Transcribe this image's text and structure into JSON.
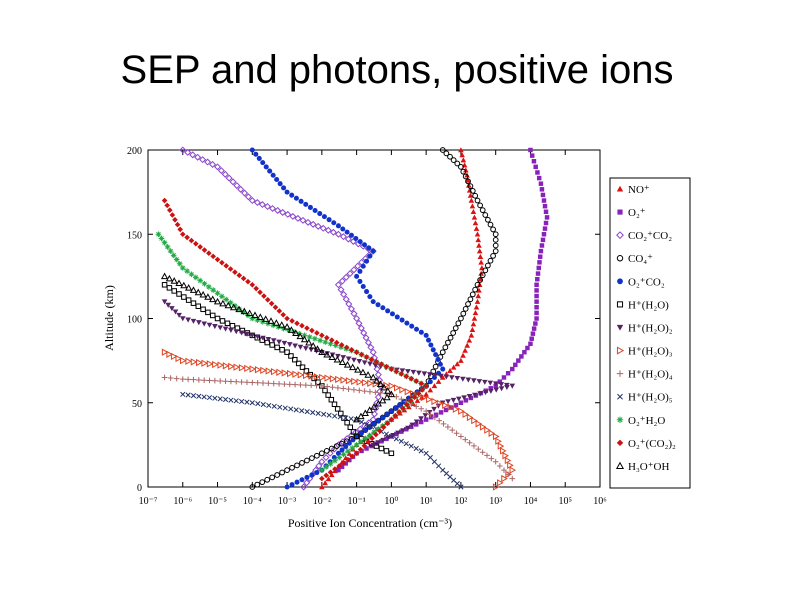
{
  "slide": {
    "title": "SEP and photons, positive ions"
  },
  "chart_data": {
    "type": "scatter",
    "title": "",
    "xlabel": "Positive Ion Concentration (cm⁻³)",
    "ylabel": "Altitude (km)",
    "xscale": "log",
    "xlim": [
      1e-07,
      1000000.0
    ],
    "ylim": [
      0,
      200
    ],
    "xticks": [
      "10⁻⁷",
      "10⁻⁶",
      "10⁻⁵",
      "10⁻⁴",
      "10⁻³",
      "10⁻²",
      "10⁻¹",
      "10⁰",
      "10¹",
      "10²",
      "10³",
      "10⁴",
      "10⁵",
      "10⁶"
    ],
    "yticks": [
      0,
      50,
      100,
      150,
      200
    ],
    "legend_position": "right",
    "series": [
      {
        "name": "NO⁺",
        "color": "#dd1111",
        "marker": "triangle",
        "points": [
          [
            0.01,
            0
          ],
          [
            0.03,
            12
          ],
          [
            0.1,
            25
          ],
          [
            1,
            40
          ],
          [
            10,
            55
          ],
          [
            30,
            65
          ],
          [
            100,
            75
          ],
          [
            200,
            90
          ],
          [
            300,
            110
          ],
          [
            400,
            130
          ],
          [
            300,
            150
          ],
          [
            200,
            170
          ],
          [
            150,
            185
          ],
          [
            100,
            200
          ]
        ]
      },
      {
        "name": "O₂⁺",
        "color": "#8822bb",
        "marker": "square",
        "points": [
          [
            0.03,
            10
          ],
          [
            0.1,
            20
          ],
          [
            1,
            30
          ],
          [
            10,
            40
          ],
          [
            100,
            50
          ],
          [
            1000,
            60
          ],
          [
            3000,
            70
          ],
          [
            10000,
            85
          ],
          [
            15000,
            100
          ],
          [
            15000,
            120
          ],
          [
            20000,
            140
          ],
          [
            30000,
            160
          ],
          [
            20000,
            180
          ],
          [
            10000,
            200
          ]
        ]
      },
      {
        "name": "CO₂⁺CO₂",
        "color": "#8844cc",
        "marker": "diamond-open",
        "points": [
          [
            0.003,
            0
          ],
          [
            0.01,
            15
          ],
          [
            0.03,
            25
          ],
          [
            0.3,
            40
          ],
          [
            0.5,
            60
          ],
          [
            0.3,
            80
          ],
          [
            0.1,
            100
          ],
          [
            0.03,
            120
          ],
          [
            0.3,
            140
          ],
          [
            0.03,
            150
          ],
          [
            0.0001,
            170
          ],
          [
            1e-05,
            190
          ],
          [
            1e-06,
            200
          ]
        ]
      },
      {
        "name": "CO₄⁺",
        "color": "#000000",
        "marker": "circle-open",
        "points": [
          [
            0.0001,
            0
          ],
          [
            0.001,
            10
          ],
          [
            0.01,
            20
          ],
          [
            0.1,
            30
          ],
          [
            1,
            45
          ],
          [
            10,
            60
          ],
          [
            30,
            80
          ],
          [
            100,
            100
          ],
          [
            300,
            120
          ],
          [
            1000,
            140
          ],
          [
            1000,
            150
          ],
          [
            300,
            170
          ],
          [
            100,
            190
          ],
          [
            30,
            200
          ]
        ]
      },
      {
        "name": "O₂⁺CO₂",
        "color": "#1133cc",
        "marker": "circle-filled",
        "points": [
          [
            0.001,
            0
          ],
          [
            0.01,
            10
          ],
          [
            0.03,
            20
          ],
          [
            0.1,
            30
          ],
          [
            1,
            45
          ],
          [
            10,
            60
          ],
          [
            30,
            70
          ],
          [
            10,
            90
          ],
          [
            0.3,
            110
          ],
          [
            0.1,
            125
          ],
          [
            0.3,
            140
          ],
          [
            0.03,
            155
          ],
          [
            0.001,
            175
          ],
          [
            0.0001,
            200
          ]
        ]
      },
      {
        "name": "H⁺(H₂O)",
        "color": "#000000",
        "marker": "square-open",
        "points": [
          [
            1,
            20
          ],
          [
            0.1,
            30
          ],
          [
            0.01,
            60
          ],
          [
            0.001,
            80
          ],
          [
            1e-05,
            100
          ],
          [
            3e-07,
            120
          ]
        ]
      },
      {
        "name": "H⁺(H₂O)₂",
        "color": "#552266",
        "marker": "triangle-down",
        "points": [
          [
            0.3,
            25
          ],
          [
            3,
            35
          ],
          [
            30,
            50
          ],
          [
            3000,
            60
          ],
          [
            1,
            70
          ],
          [
            0.01,
            80
          ],
          [
            0.0001,
            90
          ],
          [
            1e-06,
            100
          ],
          [
            3e-07,
            110
          ]
        ]
      },
      {
        "name": "H⁺(H₂O)₃",
        "color": "#dd4422",
        "marker": "triangle-right-open",
        "points": [
          [
            1000,
            0
          ],
          [
            3000,
            10
          ],
          [
            1000,
            30
          ],
          [
            100,
            45
          ],
          [
            1,
            60
          ],
          [
            0.01,
            65
          ],
          [
            0.0001,
            70
          ],
          [
            1e-06,
            75
          ],
          [
            3e-07,
            80
          ]
        ]
      },
      {
        "name": "H⁺(H₂O)₄",
        "color": "#aa6666",
        "marker": "plus",
        "points": [
          [
            3000,
            5
          ],
          [
            1000,
            15
          ],
          [
            100,
            30
          ],
          [
            10,
            45
          ],
          [
            1,
            55
          ],
          [
            0.01,
            60
          ],
          [
            0.0001,
            62
          ],
          [
            1e-06,
            64
          ],
          [
            3e-07,
            65
          ]
        ]
      },
      {
        "name": "H⁺(H₂O)₅",
        "color": "#223366",
        "marker": "x",
        "points": [
          [
            100,
            0
          ],
          [
            30,
            10
          ],
          [
            10,
            20
          ],
          [
            0.1,
            40
          ],
          [
            0.0001,
            50
          ],
          [
            1e-06,
            55
          ]
        ]
      },
      {
        "name": "O₂⁺H₂O",
        "color": "#22aa44",
        "marker": "star",
        "points": [
          [
            0.01,
            10
          ],
          [
            0.1,
            25
          ],
          [
            1,
            40
          ],
          [
            10,
            60
          ],
          [
            0.1,
            80
          ],
          [
            0.0001,
            100
          ],
          [
            1e-06,
            130
          ],
          [
            2e-07,
            150
          ]
        ]
      },
      {
        "name": "O₂⁺(CO₂)₂",
        "color": "#cc1111",
        "marker": "diamond-filled",
        "points": [
          [
            0.01,
            5
          ],
          [
            0.1,
            20
          ],
          [
            1,
            40
          ],
          [
            10,
            60
          ],
          [
            0.1,
            80
          ],
          [
            0.001,
            100
          ],
          [
            0.0001,
            120
          ],
          [
            1e-06,
            150
          ],
          [
            3e-07,
            170
          ]
        ]
      },
      {
        "name": "H₃O⁺OH",
        "color": "#000000",
        "marker": "triangle-open",
        "points": [
          [
            0.1,
            40
          ],
          [
            1,
            55
          ],
          [
            0.3,
            65
          ],
          [
            0.01,
            80
          ],
          [
            0.001,
            95
          ],
          [
            1e-05,
            110
          ],
          [
            3e-07,
            125
          ]
        ]
      }
    ]
  }
}
